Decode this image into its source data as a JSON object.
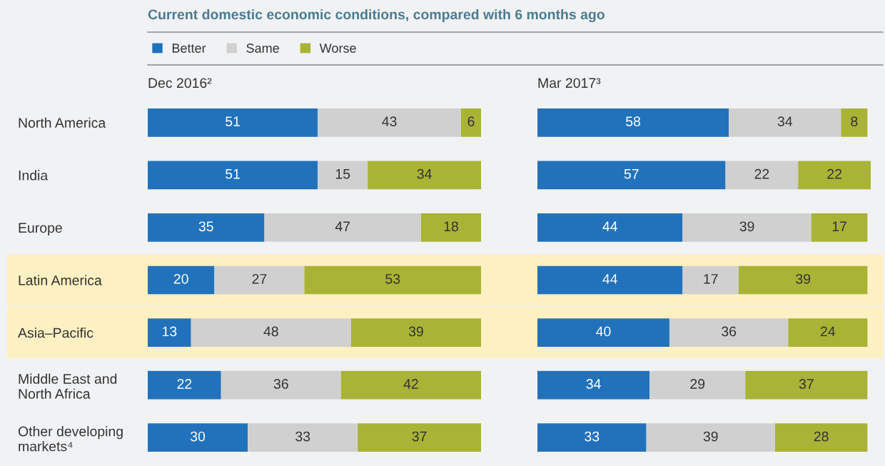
{
  "chart_data": [
    {
      "type": "bar",
      "orientation": "horizontal",
      "stacked": true,
      "data_labels": true,
      "title": "Current domestic economic conditions, compared with 6 months ago",
      "subtitle": "Dec 2016²",
      "legend": "top left",
      "tick_labels": "y",
      "grid": false,
      "xlim": [
        0,
        100
      ],
      "categories": [
        "North America",
        "India",
        "Europe",
        "Latin America",
        "Asia–Pacific",
        "Middle East and\nNorth Africa",
        "Other developing\nmarkets⁴"
      ],
      "bands": [
        {
          "axis": "y",
          "from": "Latin America",
          "to": "Latin America",
          "color": "#fdf0c2"
        },
        {
          "axis": "y",
          "from": "Asia–Pacific",
          "to": "Asia–Pacific",
          "color": "#fdf0c2"
        }
      ],
      "series": [
        {
          "name": "Better",
          "color": "#2272bb",
          "values": [
            51,
            51,
            35,
            20,
            13,
            22,
            30
          ]
        },
        {
          "name": "Same",
          "color": "#d0d0d0",
          "values": [
            43,
            15,
            47,
            27,
            48,
            36,
            33
          ]
        },
        {
          "name": "Worse",
          "color": "#a9b336",
          "values": [
            6,
            34,
            18,
            53,
            39,
            42,
            37
          ]
        }
      ]
    },
    {
      "type": "bar",
      "orientation": "horizontal",
      "stacked": true,
      "data_labels": true,
      "subtitle": "Mar 2017³",
      "tick_labels": false,
      "grid": false,
      "xlim": [
        0,
        101
      ],
      "categories": [
        "North America",
        "India",
        "Europe",
        "Latin America",
        "Asia–Pacific",
        "Middle East and\nNorth Africa",
        "Other developing\nmarkets⁴"
      ],
      "bands": [
        {
          "axis": "y",
          "from": "Latin America",
          "to": "Latin America",
          "color": "#fdf0c2"
        },
        {
          "axis": "y",
          "from": "Asia–Pacific",
          "to": "Asia–Pacific",
          "color": "#fdf0c2"
        }
      ],
      "series": [
        {
          "color": "#2272bb",
          "values": [
            58,
            57,
            44,
            44,
            40,
            34,
            33
          ]
        },
        {
          "color": "#d0d0d0",
          "values": [
            34,
            22,
            39,
            17,
            36,
            29,
            39
          ]
        },
        {
          "color": "#a9b336",
          "values": [
            8,
            22,
            17,
            39,
            24,
            37,
            28
          ]
        }
      ]
    }
  ]
}
